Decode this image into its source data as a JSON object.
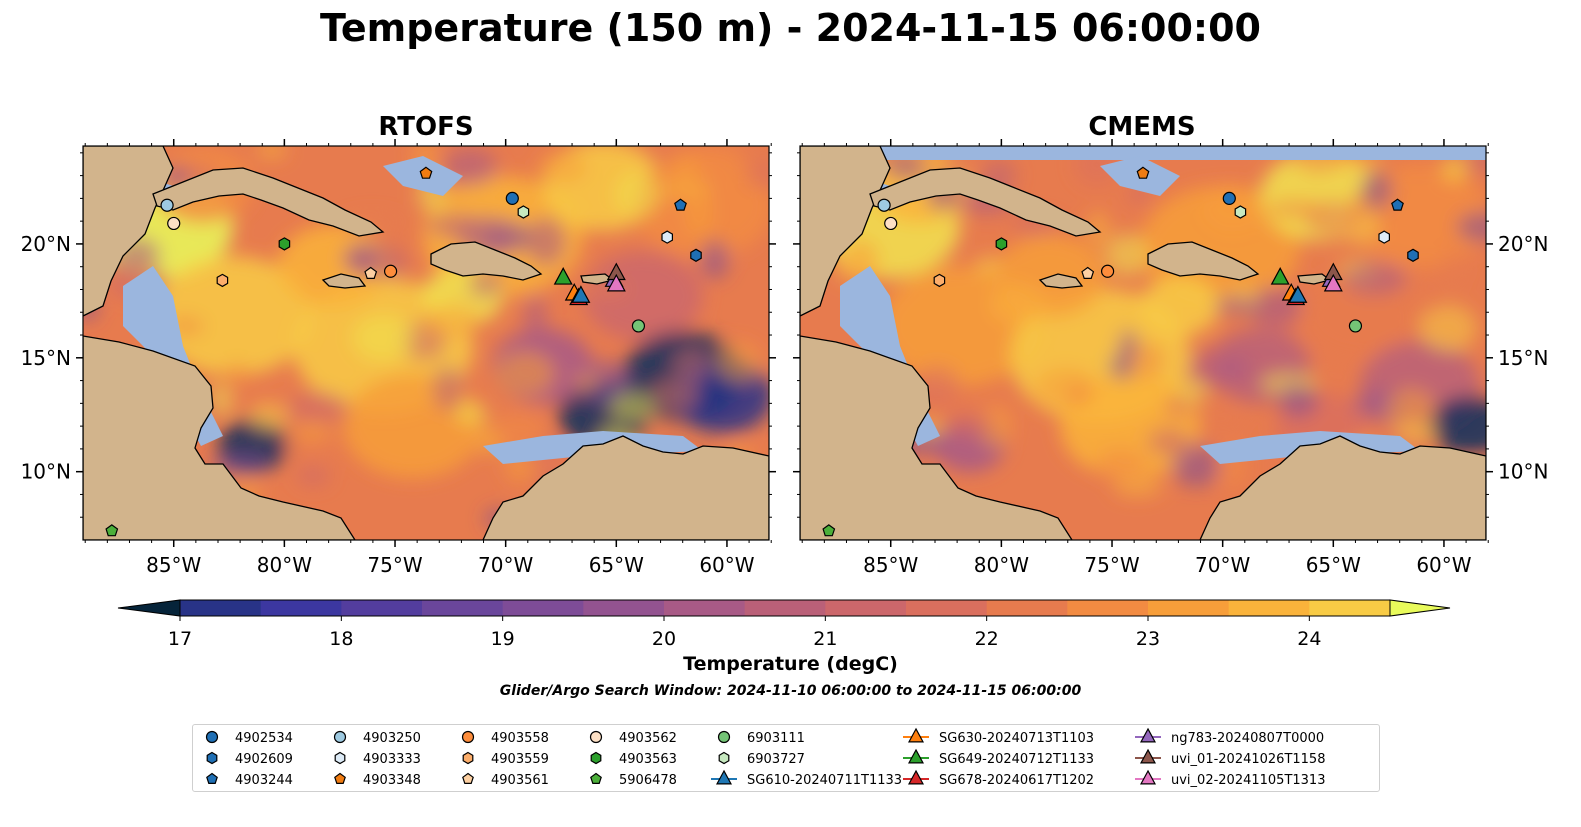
{
  "title": "Temperature (150 m) - 2024-11-15 06:00:00",
  "panels": [
    {
      "title": "RTOFS"
    },
    {
      "title": "CMEMS"
    }
  ],
  "axes": {
    "lon_ticks": [
      "85°W",
      "80°W",
      "75°W",
      "70°W",
      "65°W",
      "60°W"
    ],
    "lat_ticks": [
      "20°N",
      "15°N",
      "10°N"
    ]
  },
  "colorbar": {
    "label": "Temperature (degC)",
    "ticks": [
      "17",
      "18",
      "19",
      "20",
      "21",
      "22",
      "23",
      "24"
    ],
    "range": [
      16.5,
      24.5
    ],
    "colors": [
      "#06243a",
      "#0f2e5e",
      "#283387",
      "#3c37a0",
      "#533d9e",
      "#6a469b",
      "#7e4c97",
      "#935390",
      "#a85a86",
      "#ba6078",
      "#cc676b",
      "#da6f5e",
      "#e77b4e",
      "#f28b42",
      "#f79e3a",
      "#fab33b",
      "#f8cb45",
      "#f1e34f",
      "#e9fb5b"
    ]
  },
  "search_window": "Glider/Argo Search Window: 2024-11-10 06:00:00 to 2024-11-15 06:00:00",
  "map_colors": {
    "land": "#d2b48c",
    "shallow": "#9bb6de",
    "deep": "#06243a"
  },
  "legend": [
    {
      "label": "4902534",
      "marker": "circle",
      "color": "#1f6fb4"
    },
    {
      "label": "4902609",
      "marker": "hexagon",
      "color": "#1f6fb4"
    },
    {
      "label": "4903244",
      "marker": "pentagon",
      "color": "#1f6fb4"
    },
    {
      "label": "4903250",
      "marker": "circle",
      "color": "#9ecae1"
    },
    {
      "label": "4903333",
      "marker": "hexagon",
      "color": "#ddebf7"
    },
    {
      "label": "4903348",
      "marker": "pentagon",
      "color": "#f07c12"
    },
    {
      "label": "4903558",
      "marker": "circle",
      "color": "#fd8d3c"
    },
    {
      "label": "4903559",
      "marker": "hexagon",
      "color": "#fdae6b"
    },
    {
      "label": "4903561",
      "marker": "pentagon",
      "color": "#fdd0a2"
    },
    {
      "label": "4903562",
      "marker": "circle",
      "color": "#fde0c5"
    },
    {
      "label": "4903563",
      "marker": "hexagon",
      "color": "#2ca02c"
    },
    {
      "label": "5906478",
      "marker": "pentagon",
      "color": "#4caf3a"
    },
    {
      "label": "6903111",
      "marker": "circle",
      "color": "#74c476"
    },
    {
      "label": "6903727",
      "marker": "hexagon",
      "color": "#c7e9c0"
    },
    {
      "label": "SG610-20240711T1133",
      "marker": "triangle-line",
      "color": "#1f77b4"
    },
    {
      "label": "SG630-20240713T1103",
      "marker": "triangle-line",
      "color": "#ff7f0e"
    },
    {
      "label": "SG649-20240712T1133",
      "marker": "triangle-line",
      "color": "#2ca02c"
    },
    {
      "label": "SG678-20240617T1202",
      "marker": "triangle-line",
      "color": "#d62728"
    },
    {
      "label": "ng783-20240807T0000",
      "marker": "triangle-line",
      "color": "#9467bd"
    },
    {
      "label": "uvi_01-20241026T1158",
      "marker": "triangle-line",
      "color": "#8c564b"
    },
    {
      "label": "uvi_02-20241105T1313",
      "marker": "triangle-line",
      "color": "#e377c2"
    }
  ],
  "floats": [
    {
      "id": "4902534",
      "lon": -69.7,
      "lat": 22.0
    },
    {
      "id": "4902609",
      "lon": -61.4,
      "lat": 19.5
    },
    {
      "id": "4903244",
      "lon": -62.1,
      "lat": 21.7
    },
    {
      "id": "4903250",
      "lon": -85.3,
      "lat": 21.7
    },
    {
      "id": "4903333",
      "lon": -62.7,
      "lat": 20.3
    },
    {
      "id": "4903348",
      "lon": -73.6,
      "lat": 23.1
    },
    {
      "id": "4903558",
      "lon": -75.2,
      "lat": 18.8
    },
    {
      "id": "4903559",
      "lon": -82.8,
      "lat": 18.4
    },
    {
      "id": "4903561",
      "lon": -76.1,
      "lat": 18.7
    },
    {
      "id": "4903562",
      "lon": -85.0,
      "lat": 20.9
    },
    {
      "id": "4903563",
      "lon": -80.0,
      "lat": 20.0
    },
    {
      "id": "5906478",
      "lon": -87.8,
      "lat": 7.4
    },
    {
      "id": "6903111",
      "lon": -64.0,
      "lat": 16.4
    },
    {
      "id": "6903727",
      "lon": -69.2,
      "lat": 21.4
    },
    {
      "id": "SG630-20240713T1103",
      "lon": -66.9,
      "lat": 17.8
    },
    {
      "id": "SG649-20240712T1133",
      "lon": -67.4,
      "lat": 18.5
    },
    {
      "id": "SG678-20240617T1202",
      "lon": -66.7,
      "lat": 17.6
    },
    {
      "id": "SG610-20240711T1133",
      "lon": -66.6,
      "lat": 17.7
    },
    {
      "id": "ng783-20240807T0000",
      "lon": -65.1,
      "lat": 18.4
    },
    {
      "id": "uvi_01-20241026T1158",
      "lon": -65.0,
      "lat": 18.7
    },
    {
      "id": "uvi_02-20241105T1313",
      "lon": -65.0,
      "lat": 18.2
    }
  ]
}
